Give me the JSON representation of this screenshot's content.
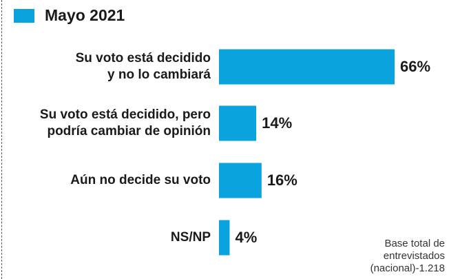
{
  "chart_data": {
    "type": "bar",
    "orientation": "horizontal",
    "series": [
      {
        "name": "Mayo 2021",
        "color": "#0aa3de",
        "values": [
          66,
          14,
          16,
          4
        ],
        "value_labels": [
          "66%",
          "14%",
          "16%",
          "4%"
        ]
      }
    ],
    "categories": [
      "Su voto está decidido\ny no lo cambiará",
      "Su voto está decidido, pero\npodría cambiar de opinión",
      "Aún no decide su voto",
      "NS/NP"
    ],
    "note": "Base total de\nentrevistados\n(nacional)-1.218"
  }
}
